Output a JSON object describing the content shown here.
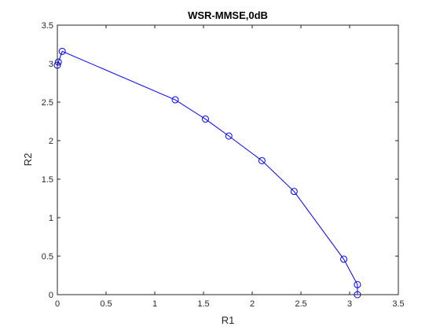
{
  "chart_data": {
    "type": "line",
    "title": "WSR-MMSE,0dB",
    "xlabel": "R1",
    "ylabel": "R2",
    "xlim": [
      0,
      3.5
    ],
    "ylim": [
      0,
      3.5
    ],
    "xticks": [
      "0",
      "0.5",
      "1",
      "1.5",
      "2",
      "2.5",
      "3",
      "3.5"
    ],
    "yticks": [
      "0",
      "0.5",
      "1",
      "1.5",
      "2",
      "2.5",
      "3",
      "3.5"
    ],
    "grid": false,
    "legend": "none",
    "marker": "circle-open",
    "color": "#0000ff",
    "series": [
      {
        "x": [
          0.0,
          0.01,
          0.05,
          1.21,
          1.52,
          1.76,
          2.1,
          2.43,
          2.94,
          3.08,
          3.08
        ],
        "y": [
          2.98,
          3.02,
          3.16,
          2.53,
          2.28,
          2.06,
          1.74,
          1.34,
          0.46,
          0.13,
          0.0
        ]
      }
    ]
  }
}
